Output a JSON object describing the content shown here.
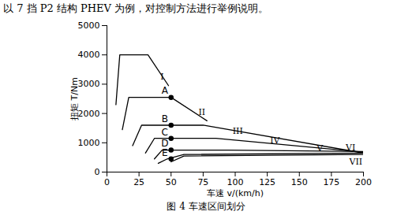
{
  "chart_data": {
    "type": "line",
    "subtitle": "以 7 挡 P2 结构 PHEV 为例，对控制方法进行举例说明。",
    "title": "图 4 车速区间划分",
    "x_label": "车速 v/(km/h)",
    "y_label": "扭矩 T/Nm",
    "xlim": [
      0,
      200
    ],
    "xticks": [
      0,
      25,
      50,
      75,
      100,
      125,
      150,
      175,
      200
    ],
    "ylim": [
      0,
      5000
    ],
    "yticks": [
      0,
      1000,
      2000,
      3000,
      4000,
      5000
    ],
    "grid": false,
    "color": "#000000",
    "series": [
      {
        "name": "I",
        "x": [
          7,
          10,
          32,
          48
        ],
        "values": [
          2300,
          4000,
          4000,
          2950
        ]
      },
      {
        "name": "II",
        "x": [
          12,
          17,
          50,
          78
        ],
        "values": [
          1450,
          2550,
          2550,
          1750
        ]
      },
      {
        "name": "III",
        "x": [
          20,
          27,
          75,
          200
        ],
        "values": [
          900,
          1600,
          1600,
          650
        ]
      },
      {
        "name": "IV",
        "x": [
          30,
          37,
          85,
          200
        ],
        "values": [
          650,
          1150,
          1150,
          680
        ]
      },
      {
        "name": "V",
        "x": [
          37,
          43,
          95,
          200
        ],
        "values": [
          450,
          750,
          750,
          700
        ]
      },
      {
        "name": "VI",
        "x": [
          40,
          47,
          60,
          200
        ],
        "values": [
          300,
          450,
          600,
          650
        ]
      },
      {
        "name": "VII",
        "x": [
          50,
          60,
          200
        ],
        "values": [
          350,
          550,
          600
        ]
      }
    ],
    "annotations": [
      {
        "text": "I",
        "x": 43,
        "y": 3250
      },
      {
        "text": "II",
        "x": 74,
        "y": 2050
      },
      {
        "text": "III",
        "x": 102,
        "y": 1400
      },
      {
        "text": "IV",
        "x": 131,
        "y": 1080
      },
      {
        "text": "V",
        "x": 166,
        "y": 820
      },
      {
        "text": "VI",
        "x": 190,
        "y": 830
      },
      {
        "text": "VII",
        "x": 194,
        "y": 350
      }
    ],
    "points": [
      {
        "label": "A",
        "x": 50,
        "y": 2550
      },
      {
        "label": "B",
        "x": 50,
        "y": 1600
      },
      {
        "label": "C",
        "x": 50,
        "y": 1150
      },
      {
        "label": "D",
        "x": 50,
        "y": 750
      },
      {
        "label": "E",
        "x": 50,
        "y": 450
      }
    ]
  }
}
